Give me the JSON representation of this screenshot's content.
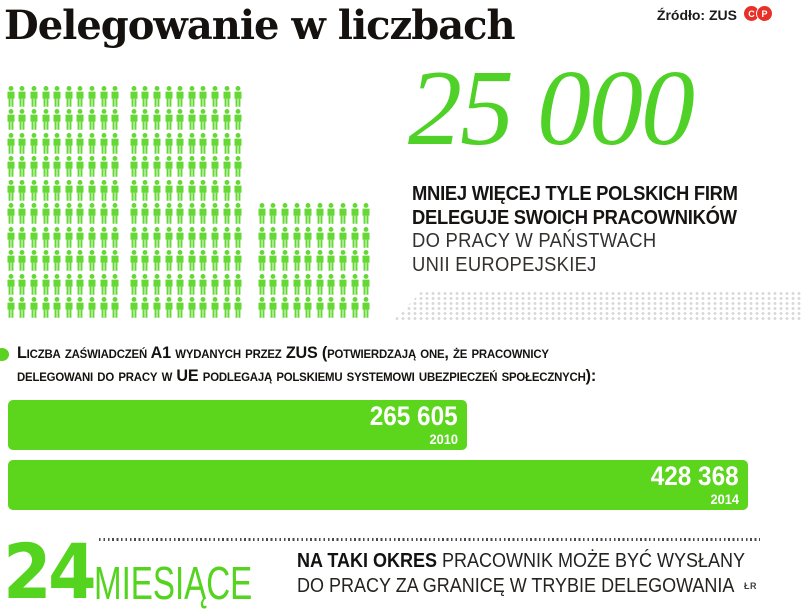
{
  "page": {
    "title": "Delegowanie w liczbach",
    "source": "Źródło: ZUS",
    "credit": "ŁR"
  },
  "logo": {
    "letters": [
      "C",
      "P"
    ],
    "color": "#e73128"
  },
  "colors": {
    "accent_green": "#5cd51d",
    "icon_green": "#66d836",
    "number_green": "#4fd127",
    "logo_red": "#e73128",
    "halftone_gray": "#d8d8d8",
    "text_dark": "#1a1816"
  },
  "firms": {
    "number": "25 000",
    "desc_bold_1": "MNIEJ WIĘCEJ TYLE POLSKICH FIRM",
    "desc_bold_2": "DELEGUJE SWOICH PRACOWNIKÓW",
    "desc_reg_1": "DO PRACY W PAŃSTWACH",
    "desc_reg_2": "UNII EUROPEJSKIEJ"
  },
  "pictograph": {
    "blocks": [
      {
        "cols": 10,
        "rows": 10
      },
      {
        "cols": 10,
        "rows": 10
      },
      {
        "cols": 10,
        "rows": 5
      }
    ],
    "total_icons": 250
  },
  "certificates": {
    "heading_line_1": "Liczba zaświadczeń A1 wydanych przez ZUS (potwierdzają one, że pracownicy",
    "heading_line_2": "delegowani do pracy w UE podlegają polskiemu systemowi ubezpieczeń społecznych):",
    "bars": [
      {
        "label": "265 605",
        "year": "2010",
        "value": 265605
      },
      {
        "label": "428 368",
        "year": "2014",
        "value": 428368
      }
    ]
  },
  "months": {
    "number": "24",
    "unit": "MIESIĄCE",
    "desc_bold": "NA TAKI OKRES",
    "desc_line_1_rest": " PRACOWNIK MOŻE BYĆ WYSŁANY",
    "desc_line_2": "DO PRACY ZA GRANICĘ W TRYBIE DELEGOWANIA"
  },
  "chart_data": [
    {
      "type": "pictograph",
      "title": "Delegowanie w liczbach",
      "value": 25000,
      "value_label": "25 000",
      "label": "mniej więcej tyle polskich firm deleguje swoich pracowników do pracy w państwach Unii Europejskiej",
      "icons_total": 250,
      "icon_blocks": [
        {
          "cols": 10,
          "rows": 10
        },
        {
          "cols": 10,
          "rows": 10
        },
        {
          "cols": 10,
          "rows": 5
        }
      ]
    },
    {
      "type": "bar",
      "orientation": "horizontal",
      "title": "Liczba zaświadczeń A1 wydanych przez ZUS (potwierdzają one, że pracownicy delegowani do pracy w UE podlegają polskiemu systemowi ubezpieczeń społecznych)",
      "categories": [
        "2010",
        "2014"
      ],
      "values": [
        265605,
        428368
      ],
      "value_labels": [
        "265 605",
        "428 368"
      ],
      "xlim": [
        0,
        428368
      ],
      "grid": false,
      "legend": false
    },
    {
      "type": "big-number",
      "value": 24,
      "unit": "miesiące",
      "label": "na taki okres pracownik może być wysłany do pracy za granicę w trybie delegowania"
    }
  ]
}
